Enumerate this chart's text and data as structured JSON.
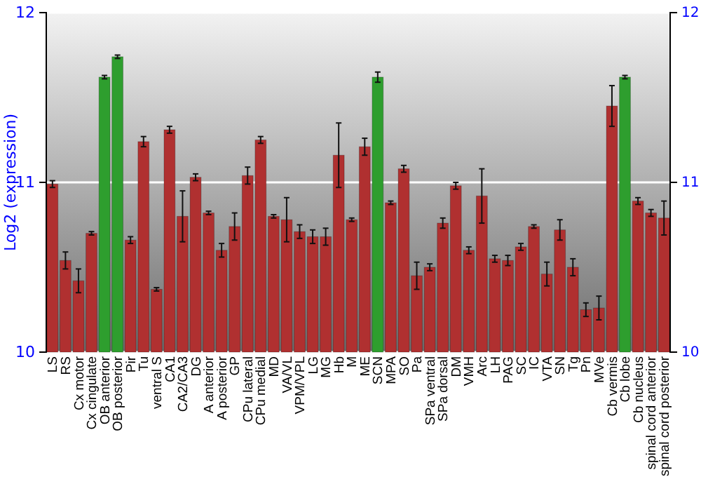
{
  "chart_data": {
    "type": "bar",
    "ylabel": "Log2 (expression)",
    "categories": [
      "LS",
      "RS",
      "Cx motor",
      "Cx cingulate",
      "OB anterior",
      "OB posterior",
      "Pir",
      "Tu",
      "ventral S",
      "CA1",
      "CA2/CA3",
      "DG",
      "A anterior",
      "A posterior",
      "GP",
      "CPu lateral",
      "CPu medial",
      "MD",
      "VA/VL",
      "VPM/VPL",
      "LG",
      "MG",
      "Hb",
      "M",
      "ME",
      "SCN",
      "MPA",
      "SO",
      "Pa",
      "SPa ventral",
      "SPa dorsal",
      "DM",
      "VMH",
      "Arc",
      "LH",
      "PAG",
      "SC",
      "IC",
      "VTA",
      "SN",
      "Tg",
      "Pn",
      "MVe",
      "Cb vermis",
      "Cb lobe",
      "Cb nucleus",
      "spinal cord anterior",
      "spinal cord posterior"
    ],
    "values": [
      10.99,
      10.54,
      10.42,
      10.7,
      11.62,
      11.74,
      10.66,
      11.24,
      10.37,
      11.31,
      10.8,
      11.03,
      10.82,
      10.6,
      10.74,
      11.04,
      11.25,
      10.8,
      10.78,
      10.71,
      10.68,
      10.68,
      11.16,
      10.78,
      11.21,
      11.62,
      10.88,
      11.08,
      10.45,
      10.5,
      10.76,
      10.98,
      10.6,
      10.92,
      10.55,
      10.54,
      10.62,
      10.74,
      10.46,
      10.72,
      10.5,
      10.25,
      10.26,
      11.45,
      11.62,
      10.89,
      10.82,
      10.79
    ],
    "errors": [
      0.02,
      0.05,
      0.07,
      0.01,
      0.01,
      0.01,
      0.02,
      0.03,
      0.01,
      0.02,
      0.15,
      0.02,
      0.01,
      0.04,
      0.08,
      0.05,
      0.02,
      0.01,
      0.13,
      0.04,
      0.04,
      0.05,
      0.19,
      0.01,
      0.05,
      0.03,
      0.01,
      0.02,
      0.08,
      0.02,
      0.03,
      0.02,
      0.02,
      0.16,
      0.02,
      0.03,
      0.02,
      0.01,
      0.07,
      0.06,
      0.05,
      0.04,
      0.07,
      0.12,
      0.01,
      0.02,
      0.02,
      0.1
    ],
    "colors": [
      "#b03030",
      "#b03030",
      "#b03030",
      "#b03030",
      "#2e9e2e",
      "#2e9e2e",
      "#b03030",
      "#b03030",
      "#b03030",
      "#b03030",
      "#b03030",
      "#b03030",
      "#b03030",
      "#b03030",
      "#b03030",
      "#b03030",
      "#b03030",
      "#b03030",
      "#b03030",
      "#b03030",
      "#b03030",
      "#b03030",
      "#b03030",
      "#b03030",
      "#b03030",
      "#2e9e2e",
      "#b03030",
      "#b03030",
      "#b03030",
      "#b03030",
      "#b03030",
      "#b03030",
      "#b03030",
      "#b03030",
      "#b03030",
      "#b03030",
      "#b03030",
      "#b03030",
      "#b03030",
      "#b03030",
      "#b03030",
      "#b03030",
      "#b03030",
      "#b03030",
      "#2e9e2e",
      "#b03030",
      "#b03030",
      "#b03030"
    ],
    "ylim": [
      10,
      12
    ],
    "yticks": [
      10,
      11,
      12
    ],
    "y2lim": [
      10,
      12
    ],
    "y2ticks": [
      10,
      11,
      12
    ],
    "grid": "y"
  }
}
